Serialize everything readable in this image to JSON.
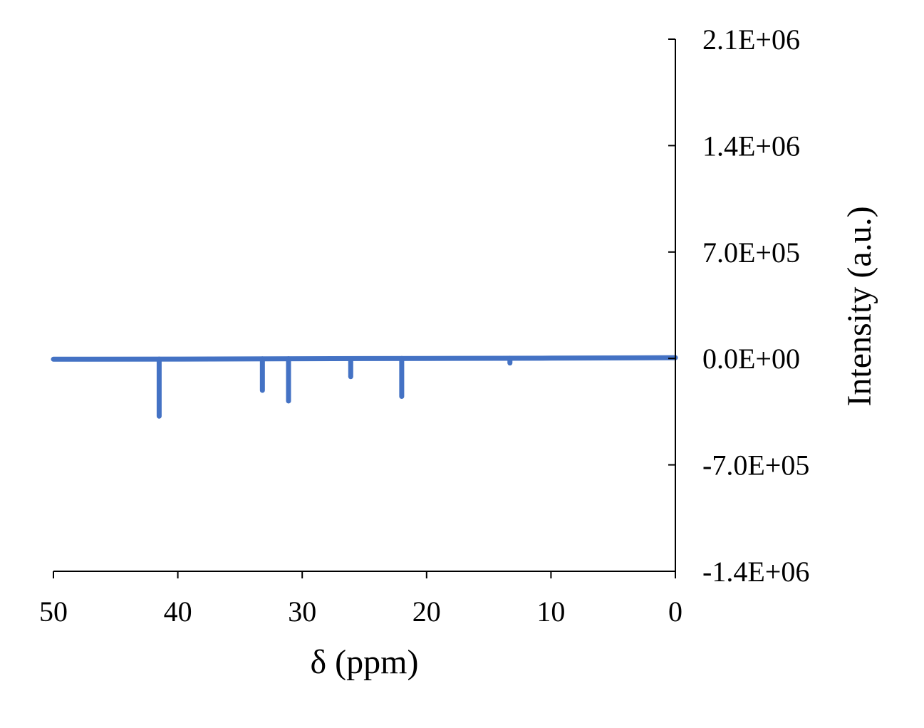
{
  "chart_data": {
    "type": "line",
    "title": "",
    "xlabel": "δ (ppm)",
    "ylabel": "Intensity (a.u.)",
    "x_reversed": true,
    "xlim": [
      0,
      50
    ],
    "ylim": [
      -1400000,
      2100000
    ],
    "x_ticks": [
      50,
      40,
      30,
      20,
      10,
      0
    ],
    "x_tick_labels": [
      "50",
      "40",
      "30",
      "20",
      "10",
      "0"
    ],
    "y_ticks": [
      2100000,
      1400000,
      700000,
      0,
      -700000,
      -1400000
    ],
    "y_tick_labels": [
      "2.1E+06",
      "1.4E+06",
      "7.0E+05",
      "0.0E+00",
      "-7.0E+05",
      "-1.4E+06"
    ],
    "y_axis_position": "right",
    "grid": false,
    "legend": "none",
    "series": [
      {
        "color": "#4472C4",
        "baseline": [
          [
            50,
            -5000
          ],
          [
            40,
            -4000
          ],
          [
            30,
            -2000
          ],
          [
            20,
            0
          ],
          [
            10,
            2000
          ],
          [
            0,
            5000
          ]
        ],
        "peaks": [
          {
            "x": 41.5,
            "y": -380000
          },
          {
            "x": 33.2,
            "y": -210000
          },
          {
            "x": 31.1,
            "y": -280000
          },
          {
            "x": 26.1,
            "y": -120000
          },
          {
            "x": 22.0,
            "y": -250000
          },
          {
            "x": 13.3,
            "y": -30000
          }
        ]
      }
    ]
  }
}
